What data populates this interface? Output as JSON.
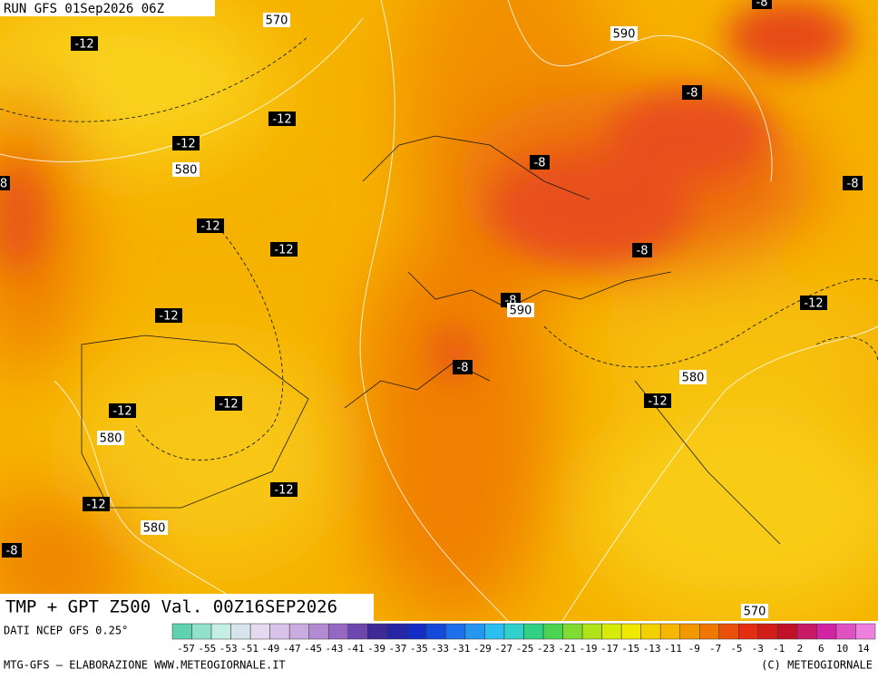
{
  "header": {
    "run": "RUN GFS 01Sep2026 06Z"
  },
  "map": {
    "labels": [
      "570",
      "-12",
      "590",
      "-8",
      "-8",
      "-12",
      "-12",
      "580",
      "-8",
      "8",
      "-8",
      "-12",
      "-12",
      "-8",
      "-12",
      "-12",
      "-8",
      "590",
      "-8",
      "580",
      "-12",
      "-12",
      "-12",
      "580",
      "-12",
      "-12",
      "580",
      "-8",
      "570"
    ]
  },
  "footer": {
    "title": "TMP + GPT Z500 Val. 00Z16SEP2026",
    "source": "DATI NCEP GFS 0.25°",
    "colorbar_ticks": [
      "-57",
      "-55",
      "-53",
      "-51",
      "-49",
      "-47",
      "-45",
      "-43",
      "-41",
      "-39",
      "-37",
      "-35",
      "-33",
      "-31",
      "-29",
      "-27",
      "-25",
      "-23",
      "-21",
      "-19",
      "-17",
      "-15",
      "-13",
      "-11",
      "-9",
      "-7",
      "-5",
      "-3",
      "-1",
      "2",
      "6",
      "10",
      "14"
    ],
    "credit_left": "MTG-GFS — ELABORAZIONE WWW.METEOGIORNALE.IT",
    "credit_right": "(C) METEOGIORNALE"
  }
}
